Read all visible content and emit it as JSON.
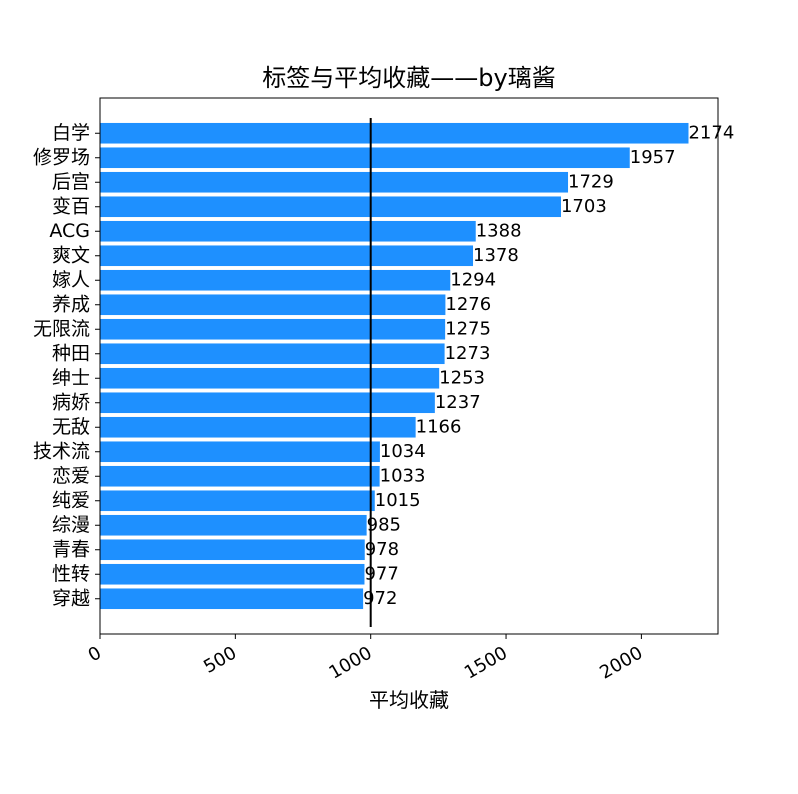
{
  "chart_data": {
    "type": "bar",
    "orientation": "horizontal",
    "title": "标签与平均收藏——by璃酱",
    "xlabel": "平均收藏",
    "ylabel": "",
    "categories": [
      "白学",
      "修罗场",
      "后宫",
      "变百",
      "ACG",
      "爽文",
      "嫁人",
      "养成",
      "无限流",
      "种田",
      "绅士",
      "病娇",
      "无敌",
      "技术流",
      "恋爱",
      "纯爱",
      "综漫",
      "青春",
      "性转",
      "穿越"
    ],
    "values": [
      2174,
      1957,
      1729,
      1703,
      1388,
      1378,
      1294,
      1276,
      1275,
      1273,
      1253,
      1237,
      1166,
      1034,
      1033,
      1015,
      985,
      978,
      977,
      972
    ],
    "data_labels": [
      "2174",
      "1957",
      "1729",
      "1703",
      "1388",
      "1378",
      "1294",
      "1276",
      "1275",
      "1273",
      "1253",
      "1237",
      "1166",
      "1034",
      "1033",
      "1015",
      "985",
      "978",
      "977",
      "972"
    ],
    "xlim": [
      0,
      2283
    ],
    "xticks": [
      0,
      500,
      1000,
      1500,
      2000
    ],
    "xtick_labels": [
      "0",
      "500",
      "1000",
      "1500",
      "2000"
    ],
    "reference_line_x": 1000,
    "bar_color": "#1e90ff",
    "reference_line_color": "#000000",
    "grid": false,
    "legend": "none"
  }
}
